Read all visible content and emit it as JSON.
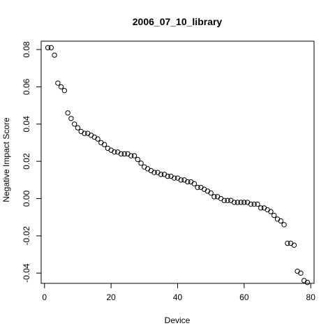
{
  "chart_data": {
    "type": "scatter",
    "title": "2006_07_10_library",
    "xlabel": "Device",
    "ylabel": "Negative Impact Score",
    "xlim": [
      -1,
      81
    ],
    "ylim": [
      -0.0455,
      0.0845
    ],
    "x_ticks": [
      0,
      20,
      40,
      60,
      80
    ],
    "x_tick_labels": [
      "0",
      "20",
      "40",
      "60",
      "80"
    ],
    "y_ticks": [
      -0.04,
      -0.02,
      0.0,
      0.02,
      0.04,
      0.06,
      0.08
    ],
    "y_tick_labels": [
      "-0.04",
      "-0.02",
      "0.00",
      "0.02",
      "0.04",
      "0.06",
      "0.08"
    ],
    "grid": false,
    "marker": "open-circle",
    "x": [
      1,
      2,
      3,
      4,
      5,
      6,
      7,
      8,
      9,
      10,
      11,
      12,
      13,
      14,
      15,
      16,
      17,
      18,
      19,
      20,
      21,
      22,
      23,
      24,
      25,
      26,
      27,
      28,
      29,
      30,
      31,
      32,
      33,
      34,
      35,
      36,
      37,
      38,
      39,
      40,
      41,
      42,
      43,
      44,
      45,
      46,
      47,
      48,
      49,
      50,
      51,
      52,
      53,
      54,
      55,
      56,
      57,
      58,
      59,
      60,
      61,
      62,
      63,
      64,
      65,
      66,
      67,
      68,
      69,
      70,
      71,
      72,
      73,
      74,
      75,
      76,
      77,
      78,
      79
    ],
    "y": [
      0.081,
      0.081,
      0.077,
      0.062,
      0.06,
      0.058,
      0.046,
      0.043,
      0.04,
      0.038,
      0.036,
      0.035,
      0.035,
      0.034,
      0.033,
      0.032,
      0.03,
      0.029,
      0.027,
      0.026,
      0.025,
      0.025,
      0.024,
      0.024,
      0.024,
      0.023,
      0.023,
      0.021,
      0.019,
      0.017,
      0.016,
      0.015,
      0.014,
      0.014,
      0.013,
      0.013,
      0.012,
      0.012,
      0.011,
      0.011,
      0.01,
      0.01,
      0.009,
      0.009,
      0.008,
      0.006,
      0.006,
      0.005,
      0.004,
      0.003,
      0.001,
      0.001,
      0.0,
      -0.001,
      -0.001,
      -0.001,
      -0.002,
      -0.002,
      -0.002,
      -0.002,
      -0.002,
      -0.003,
      -0.003,
      -0.003,
      -0.005,
      -0.005,
      -0.006,
      -0.007,
      -0.009,
      -0.011,
      -0.012,
      -0.014,
      -0.024,
      -0.024,
      -0.025,
      -0.039,
      -0.04,
      -0.044,
      -0.045
    ]
  }
}
